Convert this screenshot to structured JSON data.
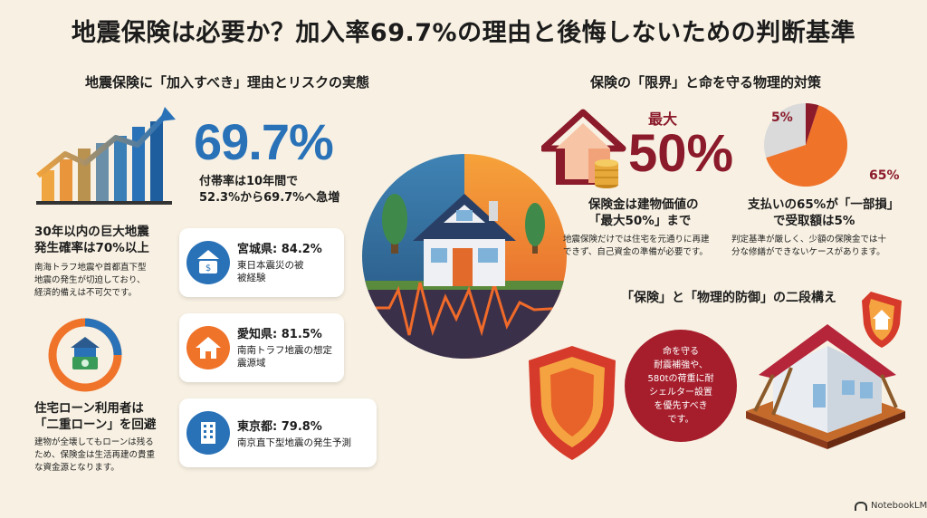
{
  "title": "地震保険は必要か？加入率69.7%の理由と後悔しないための判断基準",
  "left": {
    "section_title": "地震保険に「加入すべき」理由とリスクの実態",
    "big_percent": "69.7%",
    "growth_text_1": "付帯率は10年間で",
    "growth_text_2": "52.3%から69.7%へ急増",
    "risk_title_1": "30年以内の巨大地震",
    "risk_title_2": "発生確率は70%以上",
    "risk_text_1": "南海トラフ地震や首都直下型",
    "risk_text_2": "地震の発生が切迫しており、",
    "risk_text_3": "経済的備えは不可欠です。",
    "loan_title_1": "住宅ローン利用者は",
    "loan_title_2": "「二重ローン」を回避",
    "loan_text_1": "建物が全壊してもローンは残る",
    "loan_text_2": "ため、保険金は生活再建の貴重",
    "loan_text_3": "な資金源となります。"
  },
  "regions": [
    {
      "title": "宮城県: 84.2%",
      "line1": "東日本震災の被",
      "line2": "被経験",
      "icon": "money-icon"
    },
    {
      "title": "愛知県: 81.5%",
      "line1": "南南トラフ地震の想定",
      "line2": "震源域",
      "icon": "house-icon"
    },
    {
      "title": "東京都: 79.8%",
      "line1": "南京直下型地震の発生予測",
      "line2": "",
      "icon": "building-icon"
    }
  ],
  "right": {
    "section_title": "保険の「限界」と命を守る物理的対策",
    "max_label": "最大",
    "max_value": "50%",
    "limit_title_1": "保険金は建物価値の",
    "limit_title_2": "「最大50%」まで",
    "limit_text_1": "地震保険だけでは住宅を元通りに再建",
    "limit_text_2": "できず、自己資金の準備が必要です。",
    "pie_small_label": "5%",
    "pie_large_label": "65%",
    "pie_large_fraction": 0.65,
    "pie_small_fraction": 0.05,
    "partial_title_1": "支払いの65%が「一部損」",
    "partial_title_2": "で受取額は5%",
    "partial_text_1": "判定基準が厳しく、少額の保険金では十",
    "partial_text_2": "分な修繕ができないケースがあります。",
    "two_stage_title": "「保険」と「物理的防御」の二段構え",
    "bubble_lines": [
      "命を守る",
      "耐震補強や、",
      "580tの荷重に耐",
      "シェルター設置",
      "を優先すべき",
      "です。"
    ]
  },
  "brand": "NotebookLM",
  "colors": {
    "background": "#f8f1e3",
    "blue": "#2a72b8",
    "orange": "#f0732a",
    "dark_red": "#8b1a2b"
  }
}
